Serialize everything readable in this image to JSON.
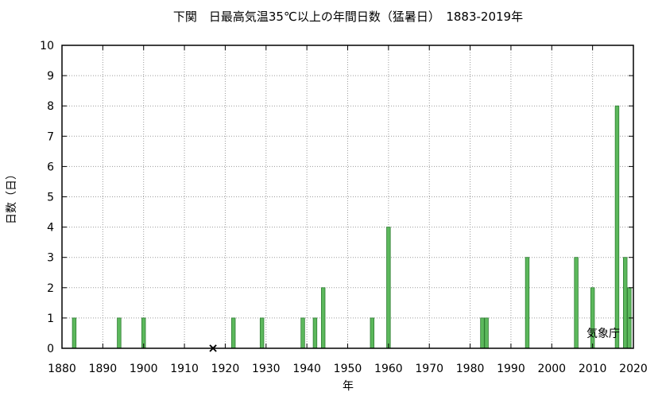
{
  "chart_data": {
    "type": "bar",
    "title": "下関　日最高気温35℃以上の年間日数（猛暑日）　1883-2019年",
    "xlabel": "年",
    "ylabel": "日数（日）",
    "xlim": [
      1880,
      2020
    ],
    "ylim": [
      0,
      10
    ],
    "xticks": [
      1880,
      1890,
      1900,
      1910,
      1920,
      1930,
      1940,
      1950,
      1960,
      1970,
      1980,
      1990,
      2000,
      2010,
      2020
    ],
    "yticks": [
      0,
      1,
      2,
      3,
      4,
      5,
      6,
      7,
      8,
      9,
      10
    ],
    "grid": true,
    "bar_color": "#5cb85c",
    "bar_edge_color": "#2e7d32",
    "bars": [
      {
        "year": 1883,
        "value": 1
      },
      {
        "year": 1894,
        "value": 1
      },
      {
        "year": 1900,
        "value": 1
      },
      {
        "year": 1922,
        "value": 1
      },
      {
        "year": 1929,
        "value": 1
      },
      {
        "year": 1939,
        "value": 1
      },
      {
        "year": 1942,
        "value": 1
      },
      {
        "year": 1944,
        "value": 2
      },
      {
        "year": 1956,
        "value": 1
      },
      {
        "year": 1960,
        "value": 4
      },
      {
        "year": 1983,
        "value": 1
      },
      {
        "year": 1984,
        "value": 1
      },
      {
        "year": 1994,
        "value": 3
      },
      {
        "year": 2006,
        "value": 3
      },
      {
        "year": 2010,
        "value": 2
      },
      {
        "year": 2016,
        "value": 8
      },
      {
        "year": 2018,
        "value": 3
      },
      {
        "year": 2019,
        "value": 2
      }
    ],
    "missing": [
      {
        "year": 1917,
        "marker": "×"
      }
    ],
    "credit": "気象庁"
  }
}
